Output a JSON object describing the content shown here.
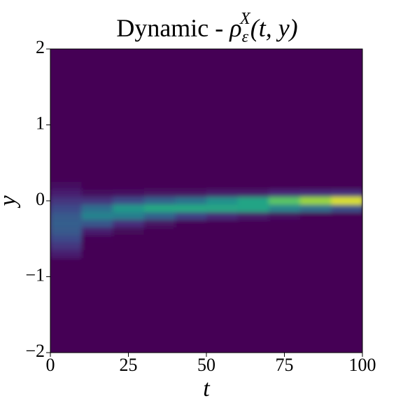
{
  "chart_data": {
    "type": "heatmap",
    "title": {
      "text": "Dynamic - ",
      "symbol": "ρ",
      "subscript": "ε",
      "superscript": "X",
      "args": "(t, y)"
    },
    "xlabel": "t",
    "ylabel": "y",
    "xlim": [
      0,
      100
    ],
    "xticks": [
      0,
      25,
      50,
      75,
      100
    ],
    "ylim": [
      -2,
      2
    ],
    "yticks": [
      {
        "value": -2,
        "label": "−2"
      },
      {
        "value": -1,
        "label": "−1"
      },
      0,
      1,
      2
    ],
    "colormap": "viridis",
    "zlim": [
      0,
      1
    ],
    "x": [
      5,
      15,
      25,
      35,
      45,
      55,
      65,
      75,
      85,
      95
    ],
    "y": [
      0.2,
      0.1,
      0,
      -0.1,
      -0.2,
      -0.3,
      -0.4,
      -0.5,
      -0.6,
      -0.7
    ],
    "z": [
      [
        0.04,
        0,
        0,
        0,
        0,
        0,
        0,
        0,
        0,
        0
      ],
      [
        0.08,
        0.03,
        0.04,
        0.05,
        0.05,
        0.07,
        0.07,
        0.11,
        0.12,
        0.13
      ],
      [
        0.15,
        0.15,
        0.23,
        0.32,
        0.38,
        0.5,
        0.58,
        0.74,
        0.85,
        0.95
      ],
      [
        0.22,
        0.36,
        0.53,
        0.6,
        0.6,
        0.59,
        0.58,
        0.46,
        0.37,
        0.25
      ],
      [
        0.28,
        0.45,
        0.43,
        0.32,
        0.2,
        0.12,
        0.07,
        0.03,
        0.01,
        0
      ],
      [
        0.3,
        0.27,
        0.13,
        0.05,
        0.01,
        0,
        0,
        0,
        0,
        0
      ],
      [
        0.28,
        0.08,
        0.02,
        0,
        0,
        0,
        0,
        0,
        0,
        0
      ],
      [
        0.22,
        0.01,
        0,
        0,
        0,
        0,
        0,
        0,
        0,
        0
      ],
      [
        0.15,
        0,
        0,
        0,
        0,
        0,
        0,
        0,
        0,
        0
      ],
      [
        0.08,
        0,
        0,
        0,
        0,
        0,
        0,
        0,
        0,
        0
      ]
    ]
  }
}
